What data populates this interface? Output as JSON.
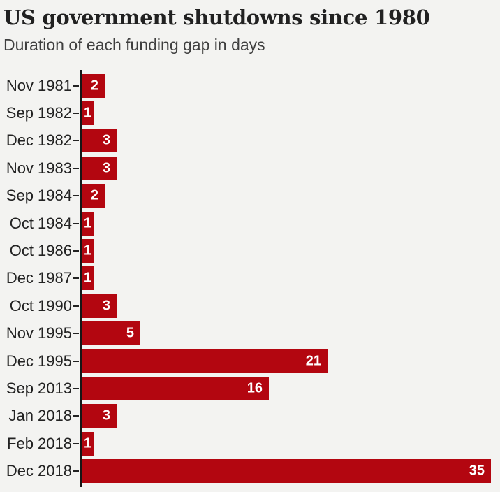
{
  "header": {
    "title": "US government shutdowns since 1980",
    "subtitle": "Duration of each funding gap in days"
  },
  "chart_data": {
    "type": "bar",
    "orientation": "horizontal",
    "title": "US government shutdowns since 1980",
    "subtitle": "Duration of each funding gap in days",
    "categories": [
      "Nov 1981",
      "Sep 1982",
      "Dec 1982",
      "Nov 1983",
      "Sep 1984",
      "Oct 1984",
      "Oct 1986",
      "Dec 1987",
      "Oct 1990",
      "Nov 1995",
      "Dec 1995",
      "Sep 2013",
      "Jan 2018",
      "Feb 2018",
      "Dec 2018"
    ],
    "values": [
      2,
      1,
      3,
      3,
      2,
      1,
      1,
      1,
      3,
      5,
      21,
      16,
      3,
      1,
      35
    ],
    "value_unit": "days",
    "xlabel": "",
    "ylabel": "",
    "xlim": [
      0,
      35
    ],
    "grid": false,
    "legend": "none",
    "value_labels": "inside-end",
    "bar_color": "#b30610",
    "value_label_color": "#ffffff",
    "background_color": "#f3f3f1",
    "axis_color": "#161616"
  }
}
